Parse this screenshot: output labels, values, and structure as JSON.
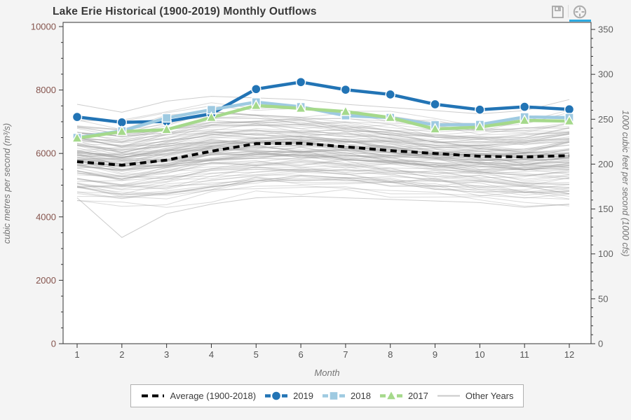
{
  "header": {
    "title": "Lake Erie Historical (1900-2019) Monthly Outflows",
    "toolbar": {
      "tools": [
        "save",
        "hover"
      ],
      "active_tool": "hover",
      "active_color": "#2baae1",
      "icon_color": "#a6a6a6"
    }
  },
  "colors": {
    "page_bg": "#f4f4f4",
    "plot_bg": "#ffffff",
    "axis_line": "#333333",
    "left_tick_labels": "#85544d",
    "right_tick_labels": "#616161",
    "x_tick_labels": "#555555",
    "axis_titles": "#757575",
    "legend_border": "#b0b0b0",
    "legend_text": "#3c3c3c",
    "other_years_line": "#9c9c9c"
  },
  "chart_data": {
    "type": "line",
    "title": "Lake Erie Historical (1900-2019) Monthly Outflows",
    "xlabel": "Month",
    "ylabel_left": "cubic metres per second (m³/s)",
    "ylabel_right": "1000 cubic feet per second (1000 cfs)",
    "x_ticks": [
      1,
      2,
      3,
      4,
      5,
      6,
      7,
      8,
      9,
      10,
      11,
      12
    ],
    "ylim_left": [
      0,
      10000
    ],
    "yticks_left": [
      0,
      2000,
      4000,
      6000,
      8000,
      10000
    ],
    "yticks_minor_step_left": 500,
    "yticks_right": [
      0,
      50,
      100,
      150,
      200,
      250,
      300,
      350
    ],
    "yticks_minor_step_right": 10,
    "right_axis_unit_factor": 0.0353147,
    "grid": false,
    "legend_position": "bottom-center",
    "series": [
      {
        "name": "Average (1900-2018)",
        "color": "#000000",
        "line_dash": [
          9,
          6
        ],
        "line_width": 4,
        "marker": "none",
        "values": [
          5740,
          5630,
          5790,
          6070,
          6310,
          6320,
          6210,
          6090,
          6000,
          5910,
          5890,
          5930
        ]
      },
      {
        "name": "2019",
        "color": "#2274b5",
        "line_dash": [],
        "line_width": 4.5,
        "marker": "circle",
        "values": [
          7150,
          6980,
          7010,
          7250,
          8030,
          8250,
          8010,
          7860,
          7550,
          7380,
          7470,
          7390
        ]
      },
      {
        "name": "2018",
        "color": "#9ecae1",
        "line_dash": [],
        "line_width": 4.5,
        "marker": "square",
        "values": [
          6500,
          6710,
          7120,
          7380,
          7620,
          7470,
          7190,
          7130,
          6900,
          6910,
          7150,
          7130
        ]
      },
      {
        "name": "2017",
        "color": "#a5d98b",
        "line_dash": [],
        "line_width": 4.5,
        "marker": "triangle",
        "values": [
          6480,
          6690,
          6750,
          7130,
          7510,
          7420,
          7320,
          7130,
          6770,
          6830,
          7040,
          7020
        ]
      }
    ],
    "other_years": {
      "label": "Other Years",
      "legend_color": "#c8c8c8",
      "count": 112,
      "seed": 11,
      "floor": [
        4500,
        4350,
        4400,
        4550,
        4750,
        4800,
        4750,
        4700,
        4600,
        4500,
        4350,
        4300
      ],
      "ceiling": [
        7350,
        7200,
        7500,
        7750,
        7700,
        7600,
        7500,
        7400,
        7250,
        7150,
        7250,
        7500
      ],
      "outlier_low": [
        4600,
        3350,
        4100,
        4400,
        4600,
        4650,
        4600,
        4550,
        4500,
        4450,
        4300,
        4400
      ],
      "outlier_high": [
        7550,
        7300,
        7650,
        7800,
        7750,
        7700,
        7550,
        7450,
        7350,
        7250,
        7350,
        7700
      ]
    }
  }
}
